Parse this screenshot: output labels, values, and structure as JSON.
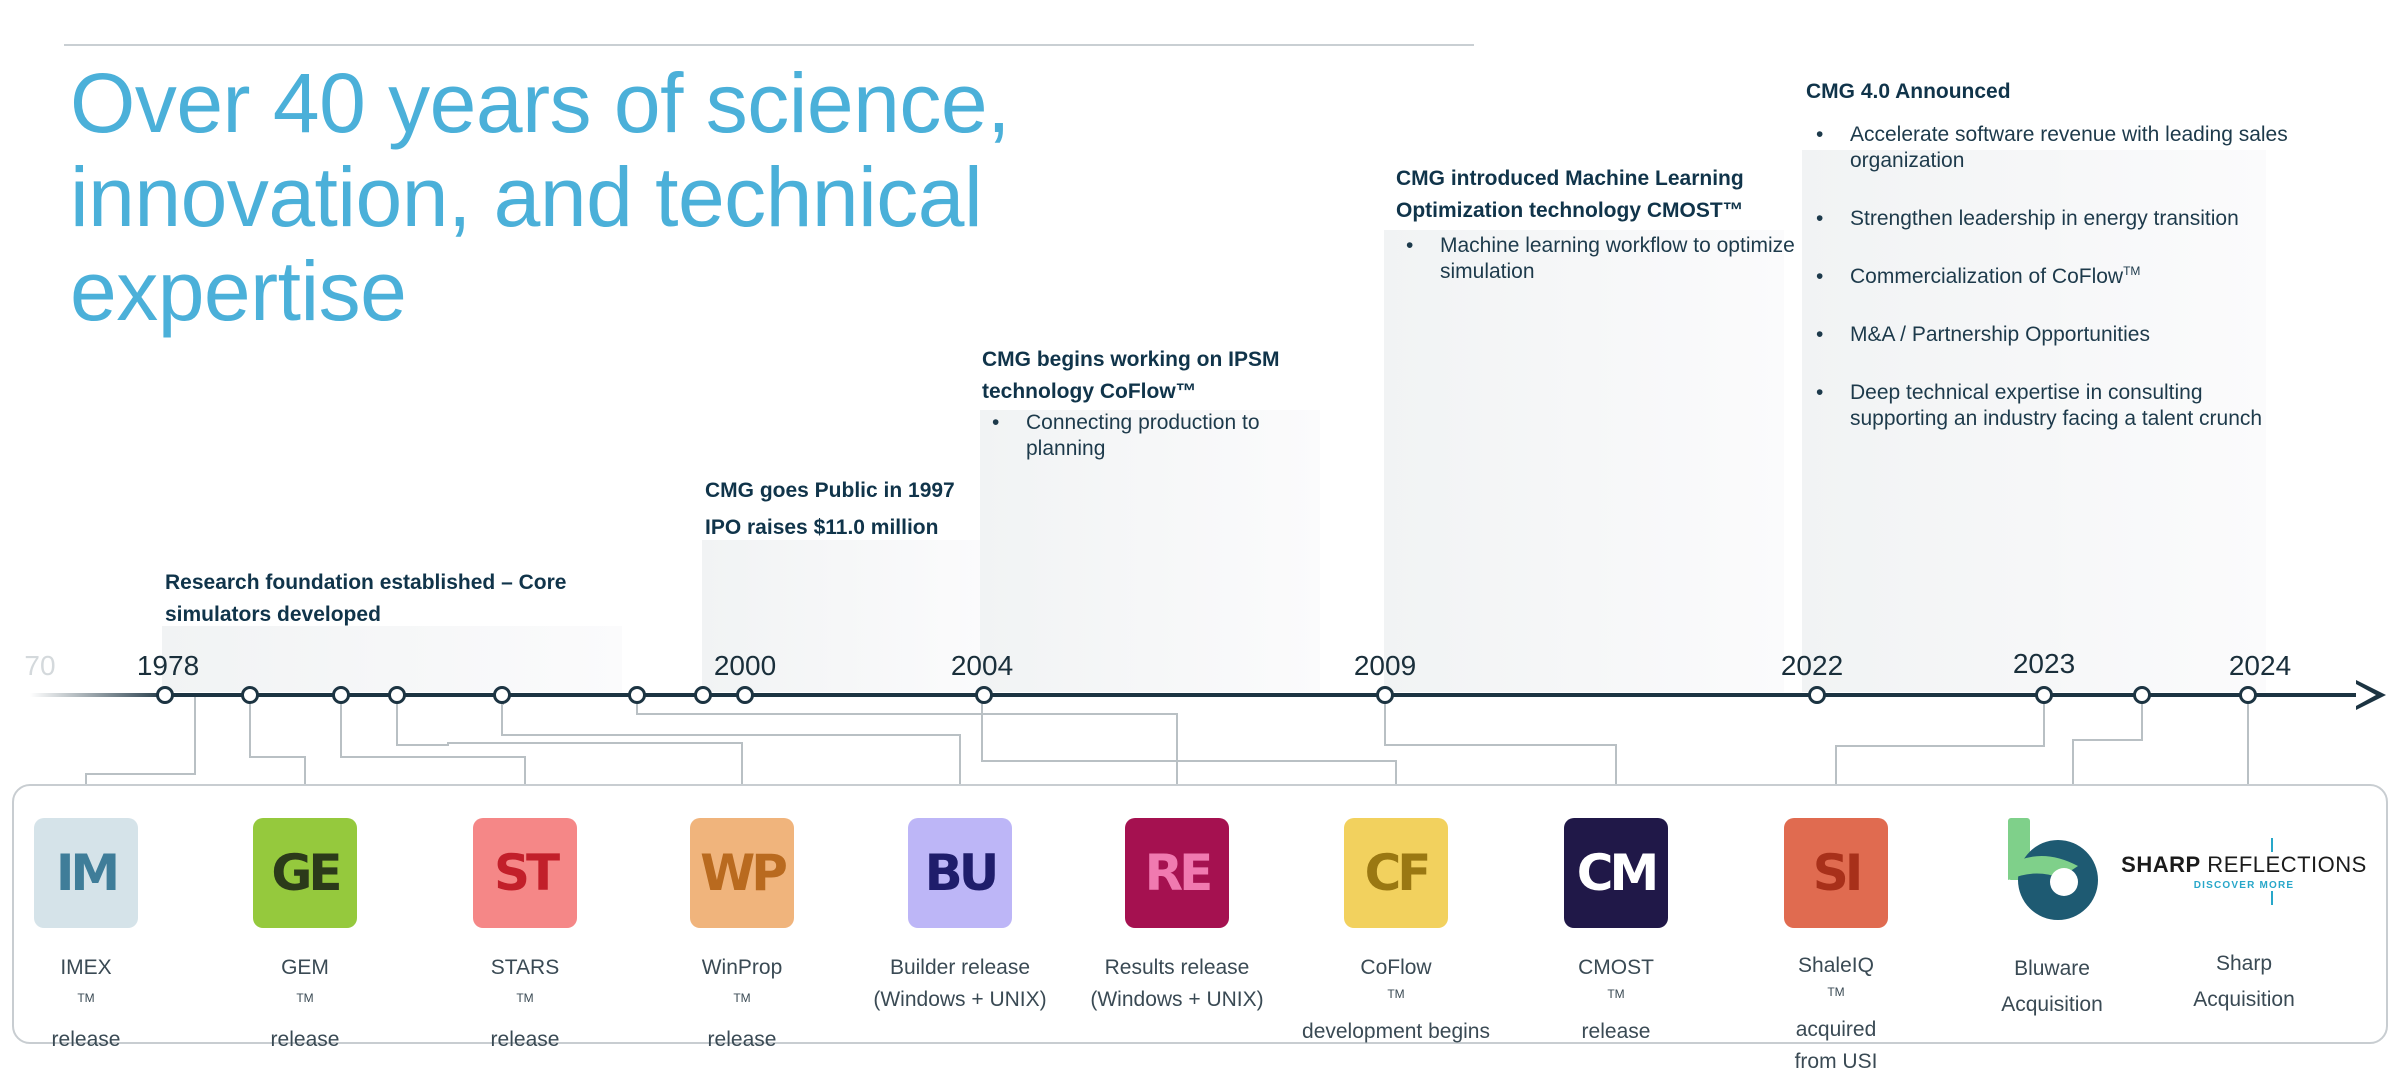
{
  "title": "Over 40 years of science,\ninnovation, and technical\nexpertise",
  "milestones": [
    {
      "id": "foundation",
      "title_lines": [
        "Research foundation established – Core",
        "simulators developed"
      ],
      "bullets": []
    },
    {
      "id": "public",
      "title_lines": [
        "CMG goes Public in 1997",
        "IPO raises $11.0 million"
      ],
      "bullets": []
    },
    {
      "id": "ipsm",
      "title_lines": [
        "CMG begins working on IPSM",
        "technology CoFlow™"
      ],
      "bullets": [
        "Connecting production to planning"
      ]
    },
    {
      "id": "ml",
      "title_lines": [
        "CMG introduced Machine Learning",
        "Optimization technology CMOST™"
      ],
      "bullets": [
        "Machine learning workflow to optimize simulation"
      ]
    },
    {
      "id": "cmg4",
      "title_lines": [
        "CMG 4.0 Announced"
      ],
      "bullets": [
        "Accelerate software revenue with leading sales organization",
        "Strengthen leadership in energy transition",
        "Commercialization of CoFlow",
        "M&A / Partnership Opportunities",
        "Deep technical expertise in consulting supporting an industry facing a talent crunch"
      ]
    }
  ],
  "cmg4_bullet_sup": "TM",
  "timeline": {
    "years": [
      "70",
      "1978",
      "2000",
      "2004",
      "2009",
      "2022",
      "2023",
      "2024"
    ]
  },
  "products": [
    {
      "id": "imex",
      "monogram": "IM",
      "color": "#d5e3e9",
      "mono_color": "#3f7d99",
      "name": "IMEX",
      "sup": "TM",
      "line2": "release"
    },
    {
      "id": "gem",
      "monogram": "GE",
      "color": "#95c93d",
      "mono_color": "#2b3a1a",
      "name": "GEM",
      "sup": "TM",
      "line2": "release"
    },
    {
      "id": "stars",
      "monogram": "ST",
      "color": "#f58787",
      "mono_color": "#c21f2a",
      "name": "STARS",
      "sup": "TM",
      "line2": "release"
    },
    {
      "id": "winprop",
      "monogram": "WP",
      "color": "#f0b47c",
      "mono_color": "#b96a1f",
      "name": "WinProp",
      "sup": "TM",
      "line2": "release"
    },
    {
      "id": "builder",
      "monogram": "BU",
      "color": "#bdb6f7",
      "mono_color": "#1f1d6b",
      "name": "Builder release",
      "sup": "",
      "line2": "(Windows + UNIX)"
    },
    {
      "id": "results",
      "monogram": "RE",
      "color": "#a51150",
      "mono_color": "#f07ab0",
      "name": "Results release",
      "sup": "",
      "line2": "(Windows + UNIX)"
    },
    {
      "id": "coflow",
      "monogram": "CF",
      "color": "#f2d15e",
      "mono_color": "#9a7812",
      "name": "CoFlow",
      "sup": "TM",
      "line2": "development begins"
    },
    {
      "id": "cmost",
      "monogram": "CM",
      "color": "#201848",
      "mono_color": "#ffffff",
      "name": "CMOST",
      "sup": "TM",
      "line2": "release"
    },
    {
      "id": "shaleiq",
      "monogram": "SI",
      "color": "#e06b50",
      "mono_color": "#a8301a",
      "name": "ShaleIQ",
      "sup": "TM",
      "name_suffix": " acquired",
      "line2": "from USI"
    },
    {
      "id": "bluware",
      "name": "Bluware",
      "sup": "",
      "line2": "Acquisition"
    },
    {
      "id": "sharp",
      "logo_main_bold": "SHARP",
      "logo_main": " REFLECTIONS",
      "logo_sub": "DISCOVER MORE",
      "name": "Sharp",
      "sup": "",
      "line2": "Acquisition"
    }
  ],
  "colors": {
    "title": "#4bb0d9",
    "axis": "#1c3442",
    "connector": "#b9c0c4"
  }
}
